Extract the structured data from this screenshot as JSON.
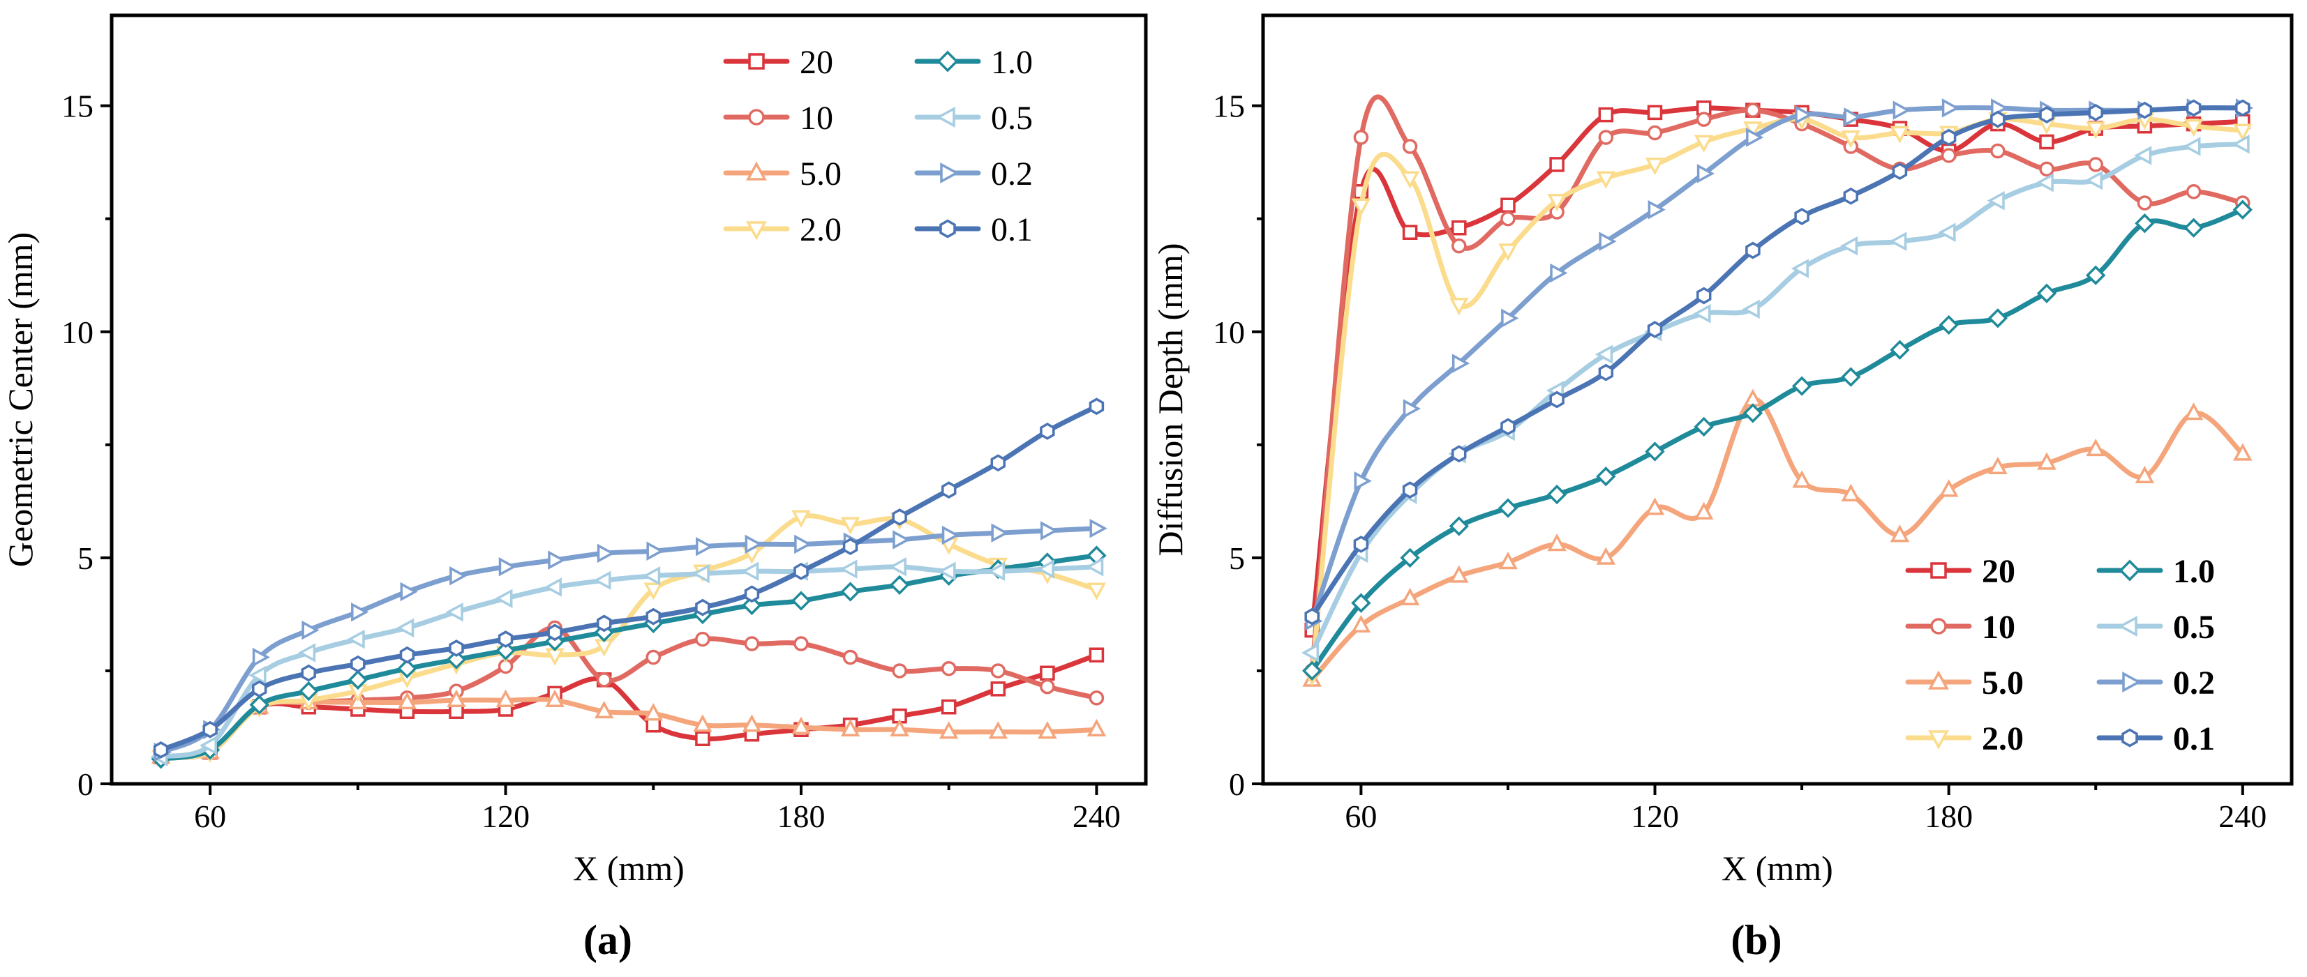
{
  "colors": {
    "20": "#d9353b",
    "10": "#e06a61",
    "5.0": "#f5a57b",
    "2.0": "#fbdc8c",
    "1.0": "#1f8a9a",
    "0.5": "#a6cde2",
    "0.2": "#7d9fcf",
    "0.1": "#4b74b4"
  },
  "legend_order": [
    "20",
    "10",
    "5.0",
    "2.0",
    "1.0",
    "0.5",
    "0.2",
    "0.1"
  ],
  "chart_data": [
    {
      "id": "a",
      "type": "line",
      "panel_label": "(a)",
      "xlabel": "X (mm)",
      "ylabel": "Geometric Center (mm)",
      "xlim": [
        40,
        250
      ],
      "ylim": [
        0,
        17
      ],
      "xticks": [
        60,
        120,
        180,
        240
      ],
      "yticks": [
        0,
        5,
        10,
        15
      ],
      "legend_position": "top-right",
      "x": [
        50,
        60,
        70,
        80,
        90,
        100,
        110,
        120,
        130,
        140,
        150,
        160,
        170,
        180,
        190,
        200,
        210,
        220,
        230,
        240
      ],
      "series": [
        {
          "name": "20",
          "marker": "square",
          "values": [
            0.6,
            0.7,
            1.7,
            1.7,
            1.65,
            1.6,
            1.6,
            1.65,
            2.0,
            2.3,
            1.3,
            1.0,
            1.1,
            1.2,
            1.3,
            1.5,
            1.7,
            2.1,
            2.45,
            2.85
          ]
        },
        {
          "name": "10",
          "marker": "circle",
          "values": [
            0.6,
            0.7,
            1.7,
            1.8,
            1.85,
            1.9,
            2.05,
            2.6,
            3.45,
            2.3,
            2.8,
            3.2,
            3.1,
            3.1,
            2.8,
            2.5,
            2.55,
            2.5,
            2.15,
            1.9
          ]
        },
        {
          "name": "5.0",
          "marker": "triangle-up",
          "values": [
            0.6,
            0.7,
            1.7,
            1.8,
            1.8,
            1.8,
            1.85,
            1.85,
            1.85,
            1.6,
            1.55,
            1.3,
            1.3,
            1.25,
            1.2,
            1.2,
            1.15,
            1.15,
            1.15,
            1.2
          ]
        },
        {
          "name": "2.0",
          "marker": "triangle-down",
          "values": [
            0.6,
            0.7,
            1.7,
            1.85,
            2.05,
            2.35,
            2.65,
            2.9,
            2.85,
            3.05,
            4.3,
            4.7,
            5.1,
            5.9,
            5.75,
            5.85,
            5.3,
            4.85,
            4.65,
            4.3
          ]
        },
        {
          "name": "1.0",
          "marker": "diamond",
          "values": [
            0.55,
            0.75,
            1.75,
            2.05,
            2.3,
            2.55,
            2.75,
            2.95,
            3.15,
            3.35,
            3.55,
            3.75,
            3.95,
            4.05,
            4.25,
            4.4,
            4.6,
            4.75,
            4.9,
            5.05
          ]
        },
        {
          "name": "0.5",
          "marker": "triangle-left",
          "values": [
            0.6,
            0.85,
            2.4,
            2.9,
            3.2,
            3.45,
            3.8,
            4.1,
            4.35,
            4.5,
            4.6,
            4.65,
            4.7,
            4.7,
            4.75,
            4.8,
            4.7,
            4.7,
            4.75,
            4.8
          ]
        },
        {
          "name": "0.2",
          "marker": "triangle-right",
          "values": [
            0.7,
            1.2,
            2.8,
            3.4,
            3.8,
            4.25,
            4.6,
            4.8,
            4.95,
            5.1,
            5.15,
            5.25,
            5.3,
            5.3,
            5.35,
            5.4,
            5.5,
            5.55,
            5.6,
            5.65
          ]
        },
        {
          "name": "0.1",
          "marker": "hexagon",
          "values": [
            0.75,
            1.2,
            2.1,
            2.45,
            2.65,
            2.85,
            3.0,
            3.2,
            3.35,
            3.55,
            3.7,
            3.9,
            4.2,
            4.7,
            5.25,
            5.9,
            6.5,
            7.1,
            7.8,
            8.35
          ]
        }
      ]
    },
    {
      "id": "b",
      "type": "line",
      "panel_label": "(b)",
      "xlabel": "X (mm)",
      "ylabel": "Diffusion Depth (mm)",
      "xlim": [
        40,
        250
      ],
      "ylim": [
        0,
        17
      ],
      "xticks": [
        60,
        120,
        180,
        240
      ],
      "yticks": [
        0,
        5,
        10,
        15
      ],
      "legend_position": "bottom-right",
      "x": [
        50,
        60,
        70,
        80,
        90,
        100,
        110,
        120,
        130,
        140,
        150,
        160,
        170,
        180,
        190,
        200,
        210,
        220,
        230,
        240
      ],
      "series": [
        {
          "name": "20",
          "marker": "square",
          "values": [
            3.4,
            13.1,
            12.2,
            12.3,
            12.8,
            13.7,
            14.8,
            14.85,
            14.95,
            14.9,
            14.85,
            14.7,
            14.5,
            14.0,
            14.6,
            14.2,
            14.5,
            14.55,
            14.6,
            14.65
          ]
        },
        {
          "name": "10",
          "marker": "circle",
          "values": [
            2.5,
            14.3,
            14.1,
            11.9,
            12.5,
            12.65,
            14.3,
            14.4,
            14.7,
            14.9,
            14.6,
            14.1,
            13.6,
            13.9,
            14.0,
            13.6,
            13.7,
            12.85,
            13.1,
            12.85
          ]
        },
        {
          "name": "5.0",
          "marker": "triangle-up",
          "values": [
            2.3,
            3.5,
            4.1,
            4.6,
            4.9,
            5.3,
            5.0,
            6.1,
            6.0,
            8.5,
            6.7,
            6.4,
            5.5,
            6.5,
            7.0,
            7.1,
            7.4,
            6.8,
            8.2,
            7.3
          ]
        },
        {
          "name": "2.0",
          "marker": "triangle-down",
          "values": [
            2.4,
            12.8,
            13.4,
            10.6,
            11.8,
            12.9,
            13.4,
            13.7,
            14.2,
            14.5,
            14.7,
            14.3,
            14.4,
            14.4,
            14.7,
            14.6,
            14.5,
            14.7,
            14.55,
            14.45
          ]
        },
        {
          "name": "1.0",
          "marker": "diamond",
          "values": [
            2.5,
            4.0,
            5.0,
            5.7,
            6.1,
            6.4,
            6.8,
            7.35,
            7.9,
            8.2,
            8.8,
            9.0,
            9.6,
            10.15,
            10.3,
            10.85,
            11.25,
            12.4,
            12.3,
            12.7
          ]
        },
        {
          "name": "0.5",
          "marker": "triangle-left",
          "values": [
            2.9,
            5.1,
            6.4,
            7.3,
            7.8,
            8.7,
            9.5,
            10.0,
            10.4,
            10.5,
            11.4,
            11.9,
            12.0,
            12.2,
            12.9,
            13.3,
            13.35,
            13.9,
            14.1,
            14.15
          ]
        },
        {
          "name": "0.2",
          "marker": "triangle-right",
          "values": [
            3.6,
            6.7,
            8.3,
            9.3,
            10.3,
            11.3,
            12.0,
            12.7,
            13.5,
            14.3,
            14.8,
            14.75,
            14.9,
            14.95,
            14.95,
            14.9,
            14.9,
            14.9,
            14.95,
            14.95
          ]
        },
        {
          "name": "0.1",
          "marker": "hexagon",
          "values": [
            3.7,
            5.3,
            6.5,
            7.3,
            7.9,
            8.5,
            9.1,
            10.05,
            10.8,
            11.8,
            12.55,
            13.0,
            13.55,
            14.3,
            14.7,
            14.8,
            14.85,
            14.9,
            14.95,
            14.95
          ]
        }
      ]
    }
  ]
}
